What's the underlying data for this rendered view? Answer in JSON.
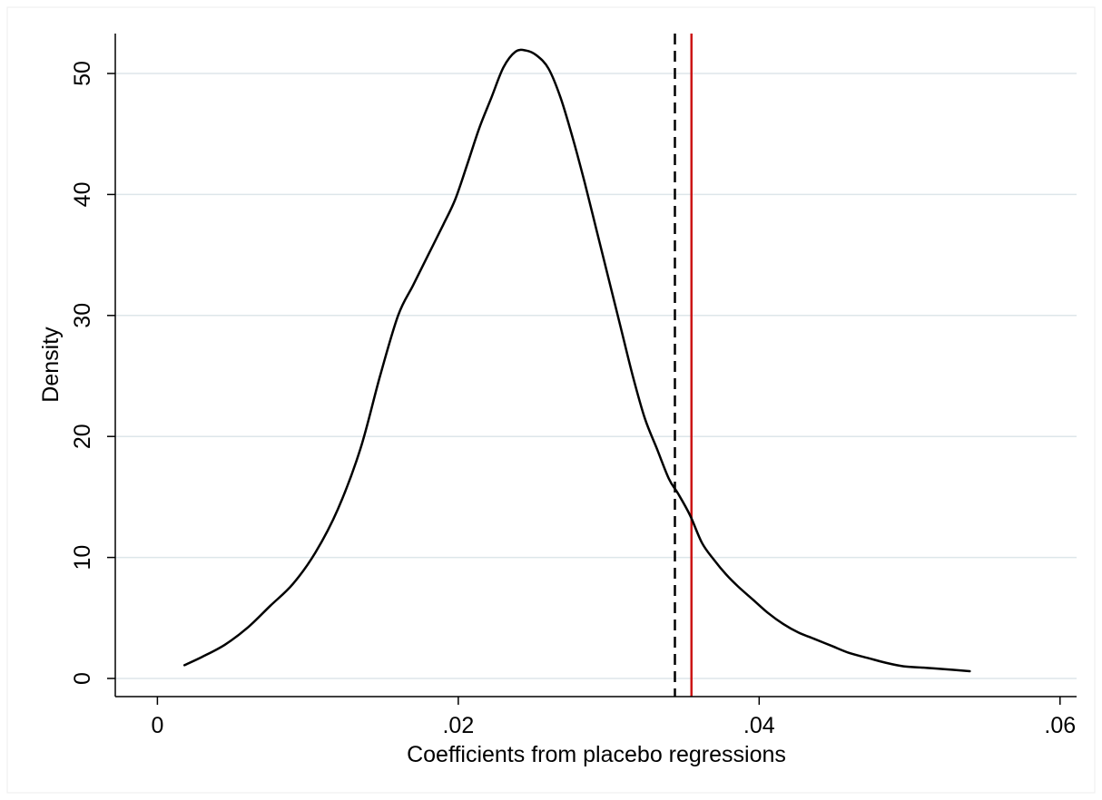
{
  "chart_data": {
    "type": "line",
    "title": "",
    "xlabel": "Coefficients from placebo regressions",
    "ylabel": "Density",
    "xlim": [
      -0.0028,
      0.0611
    ],
    "ylim": [
      -1.5,
      53.3
    ],
    "grid": true,
    "x_ticks": [
      0,
      0.02,
      0.04,
      0.06
    ],
    "x_tick_labels": [
      "0",
      ".02",
      ".04",
      ".06"
    ],
    "y_ticks": [
      0,
      10,
      20,
      30,
      40,
      50
    ],
    "y_tick_labels": [
      "0",
      "10",
      "20",
      "30",
      "40",
      "50"
    ],
    "series": [
      {
        "color": "#000000",
        "x": [
          0.0018,
          0.003,
          0.0045,
          0.006,
          0.0075,
          0.009,
          0.0105,
          0.012,
          0.0135,
          0.0148,
          0.016,
          0.017,
          0.018,
          0.019,
          0.0198,
          0.0206,
          0.0214,
          0.0222,
          0.023,
          0.0238,
          0.0245,
          0.0252,
          0.026,
          0.0268,
          0.0276,
          0.0284,
          0.0292,
          0.03,
          0.0308,
          0.0316,
          0.0324,
          0.0332,
          0.034,
          0.0346,
          0.0354,
          0.0362,
          0.037,
          0.0378,
          0.0386,
          0.0396,
          0.0406,
          0.0416,
          0.0426,
          0.0436,
          0.0448,
          0.046,
          0.0472,
          0.0484,
          0.0496,
          0.0508,
          0.052,
          0.054
        ],
        "y": [
          1.1,
          1.8,
          2.8,
          4.2,
          6.0,
          7.8,
          10.4,
          14.0,
          19.0,
          25.0,
          30.0,
          32.5,
          35.0,
          37.5,
          39.6,
          42.5,
          45.5,
          48.0,
          50.5,
          51.8,
          51.9,
          51.5,
          50.4,
          48.0,
          44.7,
          41.0,
          37.0,
          33.0,
          29.0,
          25.0,
          21.5,
          19.0,
          16.5,
          15.3,
          13.5,
          11.2,
          9.8,
          8.6,
          7.6,
          6.5,
          5.4,
          4.5,
          3.8,
          3.3,
          2.7,
          2.1,
          1.7,
          1.3,
          1.0,
          0.9,
          0.8,
          0.6
        ]
      }
    ],
    "reference_lines": [
      {
        "x": 0.0344,
        "color": "#000000",
        "style": "dashed"
      },
      {
        "x": 0.0355,
        "color": "#cc1414",
        "style": "solid"
      }
    ],
    "colors": {
      "grid": "#dde6ea",
      "curve": "#000000",
      "axis": "#000000"
    }
  }
}
